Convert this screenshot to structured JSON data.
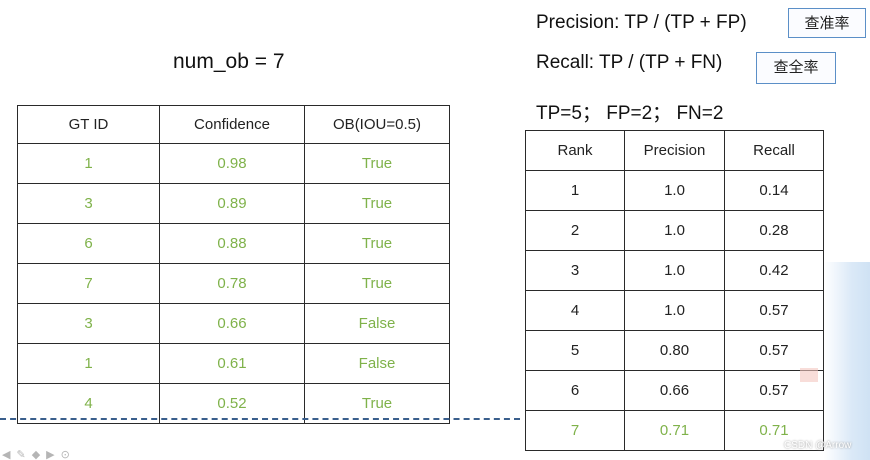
{
  "header": {
    "precision_formula": "Precision: TP / (TP + FP)",
    "precision_tag": "查准率",
    "recall_formula": "Recall: TP / (TP + FN)",
    "recall_tag": "查全率",
    "counts": "TP=5； FP=2； FN=2"
  },
  "left": {
    "num_ob": "num_ob = 7",
    "headers": [
      "GT ID",
      "Confidence",
      "OB(IOU=0.5)"
    ],
    "rows": [
      [
        "1",
        "0.98",
        "True"
      ],
      [
        "3",
        "0.89",
        "True"
      ],
      [
        "6",
        "0.88",
        "True"
      ],
      [
        "7",
        "0.78",
        "True"
      ],
      [
        "3",
        "0.66",
        "False"
      ],
      [
        "1",
        "0.61",
        "False"
      ],
      [
        "4",
        "0.52",
        "True"
      ]
    ]
  },
  "right": {
    "headers": [
      "Rank",
      "Precision",
      "Recall"
    ],
    "rows": [
      [
        "1",
        "1.0",
        "0.14"
      ],
      [
        "2",
        "1.0",
        "0.28"
      ],
      [
        "3",
        "1.0",
        "0.42"
      ],
      [
        "4",
        "1.0",
        "0.57"
      ],
      [
        "5",
        "0.80",
        "0.57"
      ],
      [
        "6",
        "0.66",
        "0.57"
      ],
      [
        "7",
        "0.71",
        "0.71"
      ]
    ]
  },
  "colors": {
    "highlight_green": "#7fb24a",
    "tag_border": "#5b8fc7",
    "dashed_line": "#3a5e8c"
  },
  "watermark": "CSDN @Arrow"
}
